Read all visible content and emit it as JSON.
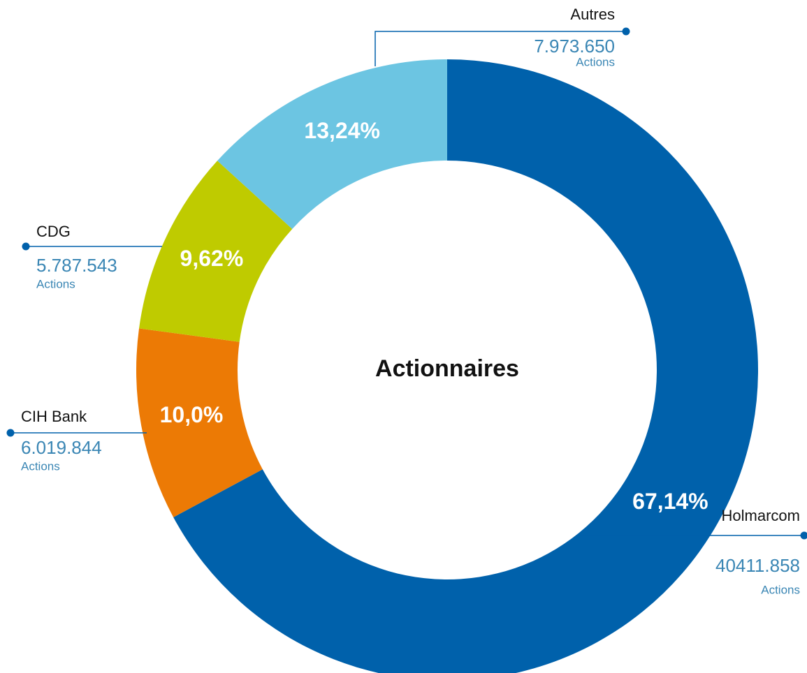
{
  "chart_data": {
    "type": "donut",
    "title": "Actionnaires",
    "categories": [
      "Holmarcom",
      "CIH Bank",
      "CDG",
      "Autres"
    ],
    "values": [
      67.14,
      10.0,
      9.62,
      13.24
    ],
    "value_labels": [
      "67,14%",
      "10,0%",
      "9,62%",
      "13,24%"
    ],
    "colors": [
      "#0061ab",
      "#ec7a05",
      "#bfcb00",
      "#6cc5e2"
    ],
    "shares": [
      "40411.858",
      "6.019.844",
      "5.787.543",
      "7.973.650"
    ],
    "unit": "Actions"
  }
}
